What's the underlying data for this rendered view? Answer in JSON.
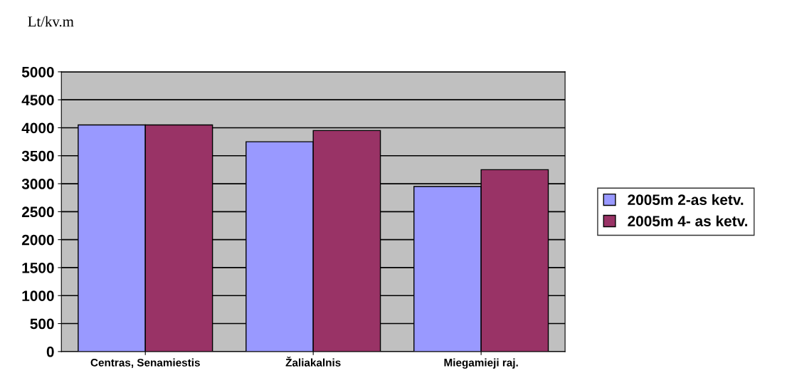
{
  "chart_data": {
    "type": "bar",
    "ylabel": "Lt/kv.m",
    "categories": [
      "Centras, Senamiestis",
      "Žaliakalnis",
      "Miegamieji raj."
    ],
    "series": [
      {
        "name": "2005m 2-as ketv.",
        "color": "#9999ff",
        "values": [
          4050,
          3750,
          2950
        ]
      },
      {
        "name": "2005m 4- as ketv.",
        "color": "#993366",
        "values": [
          4050,
          3950,
          3250
        ]
      }
    ],
    "ylim": [
      0,
      5000
    ],
    "yticks": [
      0,
      500,
      1000,
      1500,
      2000,
      2500,
      3000,
      3500,
      4000,
      4500,
      5000
    ],
    "grid": "y",
    "legend": "right"
  }
}
